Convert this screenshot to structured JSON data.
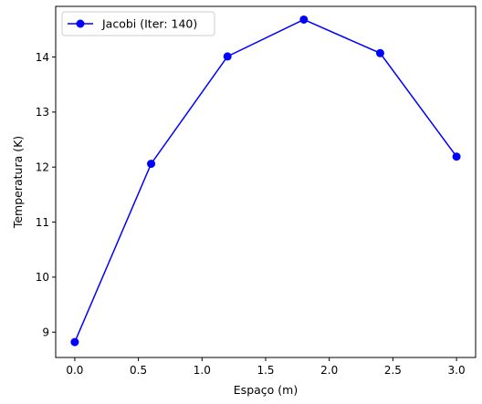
{
  "chart_data": {
    "type": "line",
    "title": "",
    "xlabel": "Espaço (m)",
    "ylabel": "Temperatura (K)",
    "xlim": [
      -0.15,
      3.15
    ],
    "ylim": [
      8.54,
      14.92
    ],
    "xticks": [
      0.0,
      0.5,
      1.0,
      1.5,
      2.0,
      2.5,
      3.0
    ],
    "xtick_labels": [
      "0.0",
      "0.5",
      "1.0",
      "1.5",
      "2.0",
      "2.5",
      "3.0"
    ],
    "yticks": [
      9,
      10,
      11,
      12,
      13,
      14
    ],
    "ytick_labels": [
      "9",
      "10",
      "11",
      "12",
      "13",
      "14"
    ],
    "grid": false,
    "legend_position": "top-left",
    "series": [
      {
        "name": "Jacobi (Iter: 140)",
        "color": "#0000ff",
        "marker": "circle",
        "x": [
          0.0,
          0.6,
          1.2,
          1.8,
          2.4,
          3.0
        ],
        "y": [
          8.82,
          12.06,
          14.01,
          14.68,
          14.07,
          12.19
        ]
      }
    ]
  }
}
